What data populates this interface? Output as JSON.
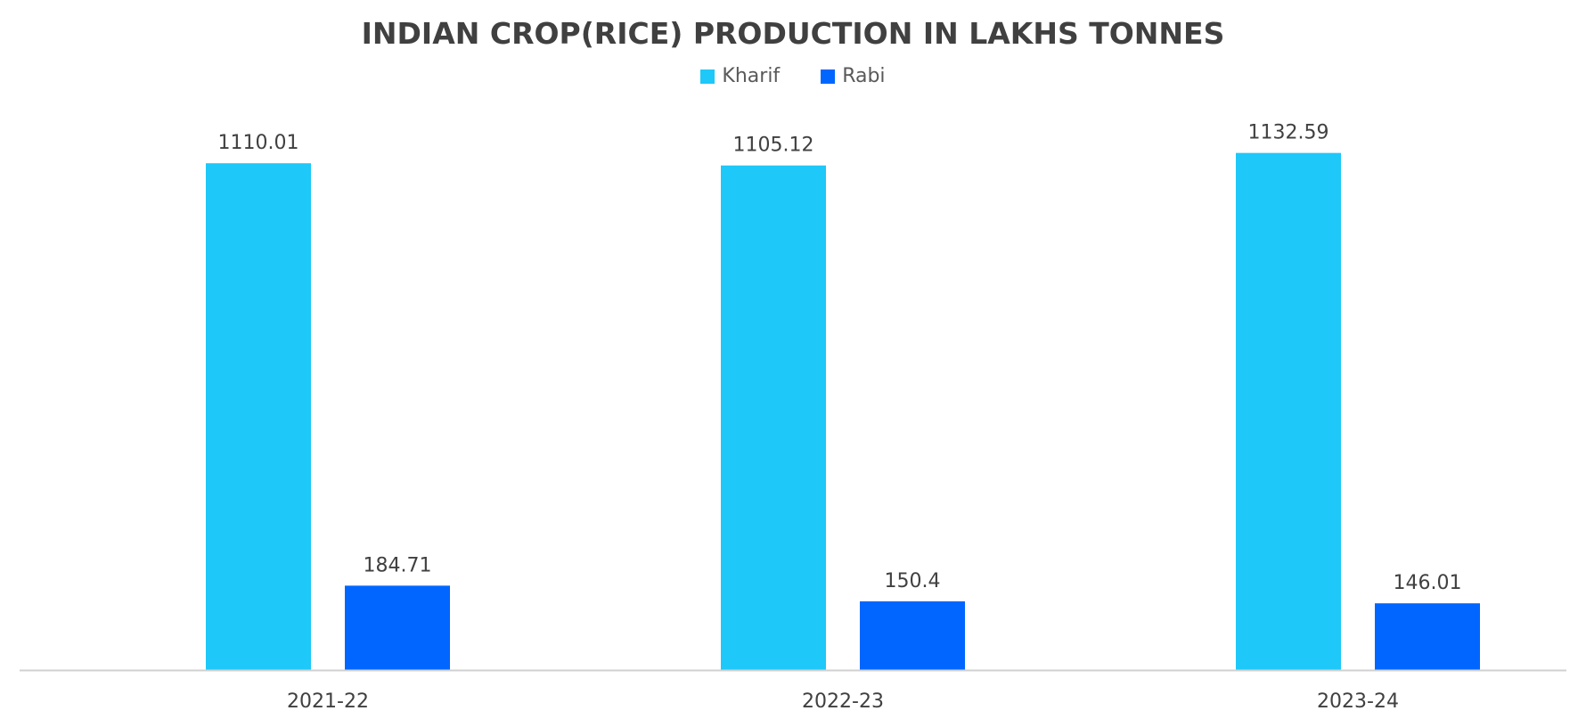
{
  "chart_data": {
    "type": "bar",
    "title": "INDIAN CROP(RICE) PRODUCTION IN LAKHS TONNES",
    "categories": [
      "2021-22",
      "2022-23",
      "2023-24"
    ],
    "series": [
      {
        "name": "Kharif",
        "color": "#1EC8F8",
        "values": [
          1110.01,
          1105.12,
          1132.59
        ],
        "labels": [
          "1110.01",
          "1105.12",
          "1132.59"
        ]
      },
      {
        "name": "Rabi",
        "color": "#0066FF",
        "values": [
          184.71,
          150.4,
          146.01
        ],
        "labels": [
          "184.71",
          "150.4",
          "146.01"
        ]
      }
    ],
    "ylim": [
      0,
      1200
    ],
    "grid": false,
    "legend": "top-center",
    "xlabel": "",
    "ylabel": ""
  }
}
